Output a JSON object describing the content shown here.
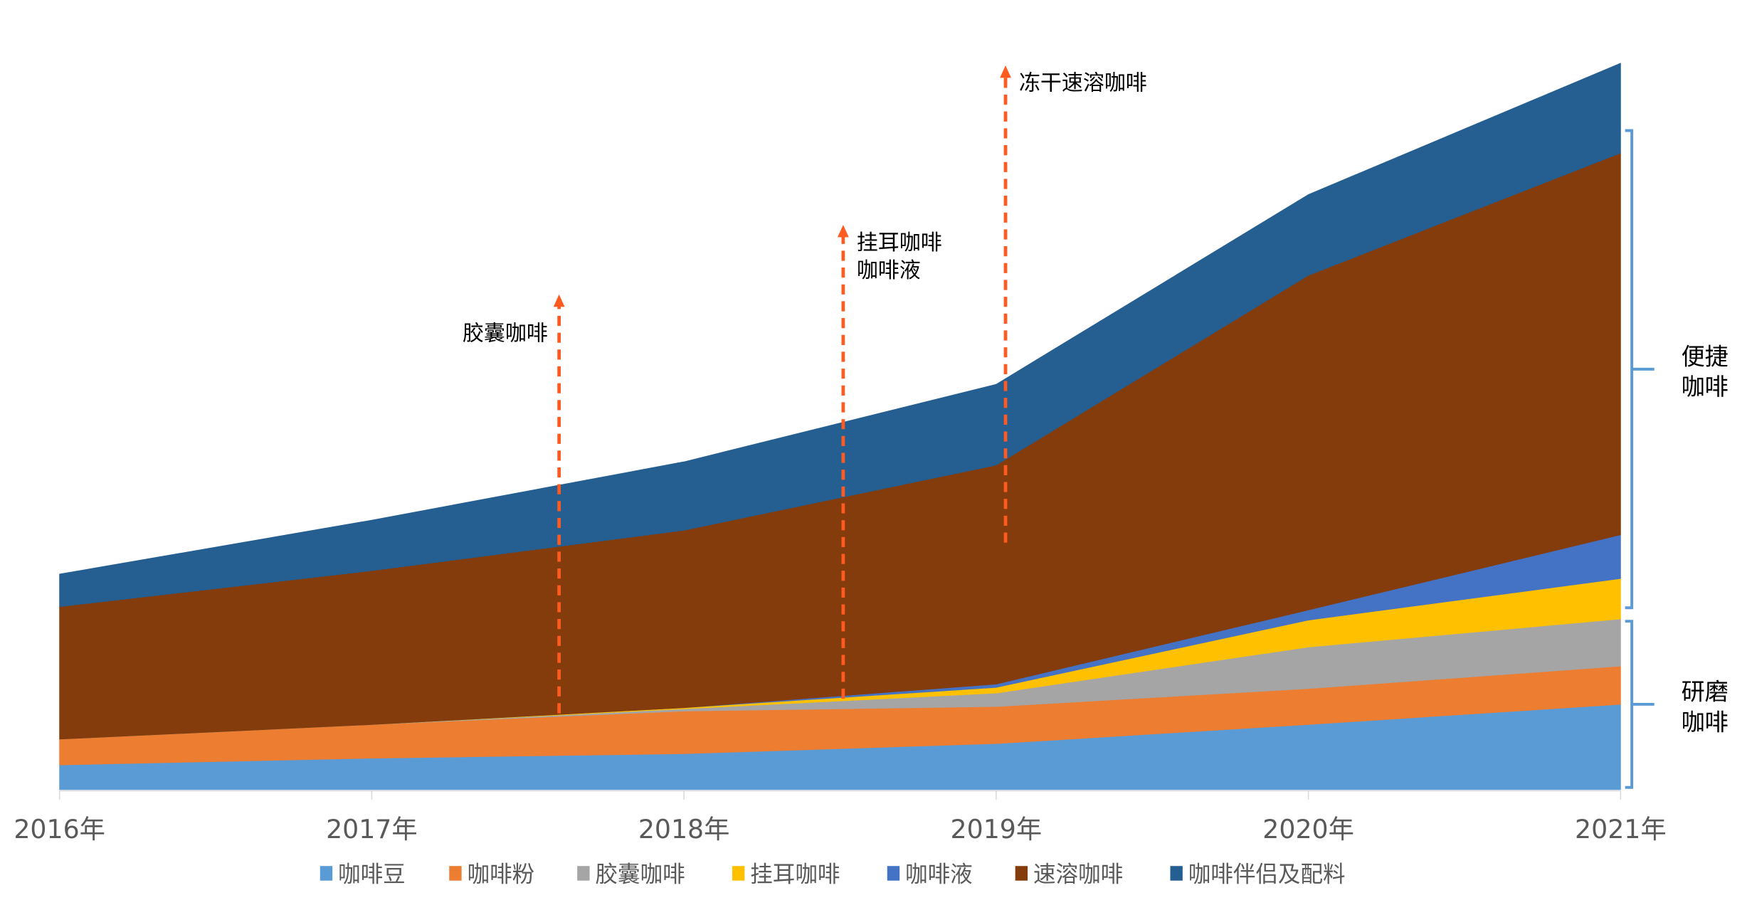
{
  "chart_data": {
    "type": "area",
    "stacked": true,
    "title": "",
    "xlabel": "",
    "ylabel": "",
    "y_axis_shown": false,
    "grid": false,
    "legend_position": "bottom",
    "categories": [
      "2016年",
      "2017年",
      "2018年",
      "2019年",
      "2020年",
      "2021年"
    ],
    "series": [
      {
        "name": "咖啡豆",
        "color": "#5B9BD5",
        "values": [
          22,
          28,
          32,
          41,
          58,
          76
        ]
      },
      {
        "name": "咖啡粉",
        "color": "#ED7D31",
        "values": [
          23,
          30,
          38,
          33,
          32,
          34
        ]
      },
      {
        "name": "胶囊咖啡",
        "color": "#A5A5A5",
        "values": [
          0,
          0,
          2,
          12,
          37,
          42
        ]
      },
      {
        "name": "挂耳咖啡",
        "color": "#FFC000",
        "values": [
          0,
          0,
          1,
          5,
          24,
          36
        ]
      },
      {
        "name": "咖啡液",
        "color": "#4472C4",
        "values": [
          0,
          0,
          0,
          3,
          9,
          39
        ]
      },
      {
        "name": "速溶咖啡",
        "color": "#843C0C",
        "values": [
          118,
          137,
          158,
          195,
          298,
          340
        ]
      },
      {
        "name": "咖啡伴侣及配料",
        "color": "#255E91",
        "values": [
          29,
          45,
          61,
          72,
          72,
          80
        ]
      }
    ],
    "annotations": [
      {
        "lines": [
          "胶囊咖啡"
        ],
        "year": 2017.6,
        "from": 68,
        "to": 441,
        "label_side": "left",
        "color": "#FF5A1F"
      },
      {
        "lines": [
          "挂耳咖啡",
          "咖啡液"
        ],
        "year": 2018.51,
        "from": 81,
        "to": 503,
        "label_side": "right",
        "color": "#FF5A1F"
      },
      {
        "lines": [
          "冻干速溶咖啡"
        ],
        "year": 2019.03,
        "from": 220,
        "to": 645,
        "label_side": "right",
        "color": "#FF5A1F"
      }
    ],
    "brackets": [
      {
        "lines": [
          "便捷",
          "咖啡"
        ],
        "from": 162,
        "to": 587,
        "color": "#5B9BD5"
      },
      {
        "lines": [
          "研磨",
          "咖啡"
        ],
        "from": 2,
        "to": 150,
        "color": "#5B9BD5"
      }
    ]
  }
}
